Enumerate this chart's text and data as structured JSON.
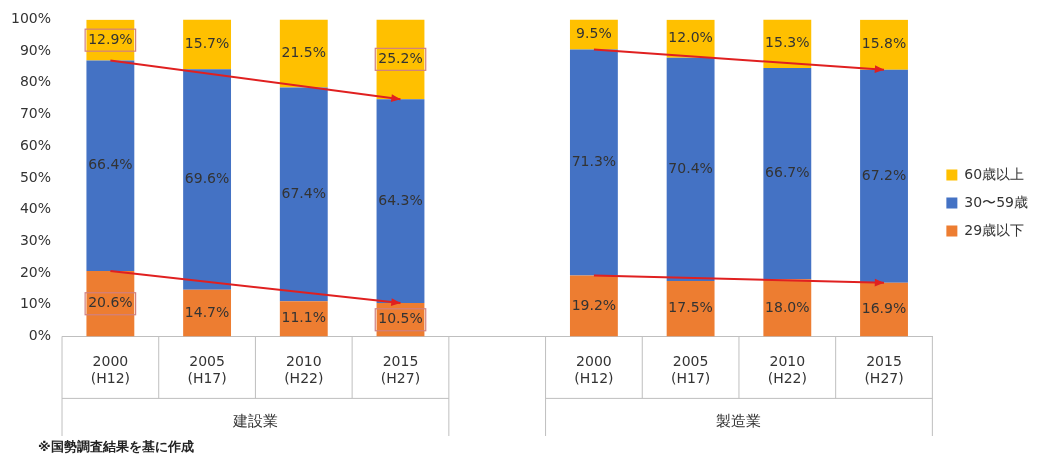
{
  "chart_data": {
    "type": "bar",
    "stacked": true,
    "categories": [
      "2000\n(H12)",
      "2005\n(H17)",
      "2010\n(H22)",
      "2015\n(H27)",
      null,
      "2000\n(H12)",
      "2005\n(H17)",
      "2010\n(H22)",
      "2015\n(H27)"
    ],
    "series": [
      {
        "name": "29歳以下",
        "color": "#ed7d31",
        "values": [
          20.6,
          14.7,
          11.1,
          10.5,
          null,
          19.2,
          17.5,
          18.0,
          16.9
        ],
        "value_labels": [
          "20.6%",
          "14.7%",
          "11.1%",
          "10.5%",
          null,
          "19.2%",
          "17.5%",
          "18.0%",
          "16.9%"
        ]
      },
      {
        "name": "30〜59歳",
        "color": "#4472c4",
        "values": [
          66.4,
          69.6,
          67.4,
          64.3,
          null,
          71.3,
          70.4,
          66.7,
          67.2
        ],
        "value_labels": [
          "66.4%",
          "69.6%",
          "67.4%",
          "64.3%",
          null,
          "71.3%",
          "70.4%",
          "66.7%",
          "67.2%"
        ]
      },
      {
        "name": "60歳以上",
        "color": "#ffc000",
        "values": [
          12.9,
          15.7,
          21.5,
          25.2,
          null,
          9.5,
          12.0,
          15.3,
          15.8
        ],
        "value_labels": [
          "12.9%",
          "15.7%",
          "21.5%",
          "25.2%",
          null,
          "9.5%",
          "12.0%",
          "15.3%",
          "15.8%"
        ]
      }
    ],
    "ylim": [
      0,
      100
    ],
    "yticks": [
      {
        "value": 0,
        "label": "0%"
      },
      {
        "value": 10,
        "label": "10%"
      },
      {
        "value": 20,
        "label": "20%"
      },
      {
        "value": 30,
        "label": "30%"
      },
      {
        "value": 40,
        "label": "40%"
      },
      {
        "value": 50,
        "label": "50%"
      },
      {
        "value": 60,
        "label": "60%"
      },
      {
        "value": 70,
        "label": "70%"
      },
      {
        "value": 80,
        "label": "80%"
      },
      {
        "value": 90,
        "label": "90%"
      },
      {
        "value": 100,
        "label": "100%"
      }
    ],
    "legend": "right",
    "annotations": [
      "建設業",
      "製造業",
      "※国勢調査結果を基に作成"
    ]
  }
}
